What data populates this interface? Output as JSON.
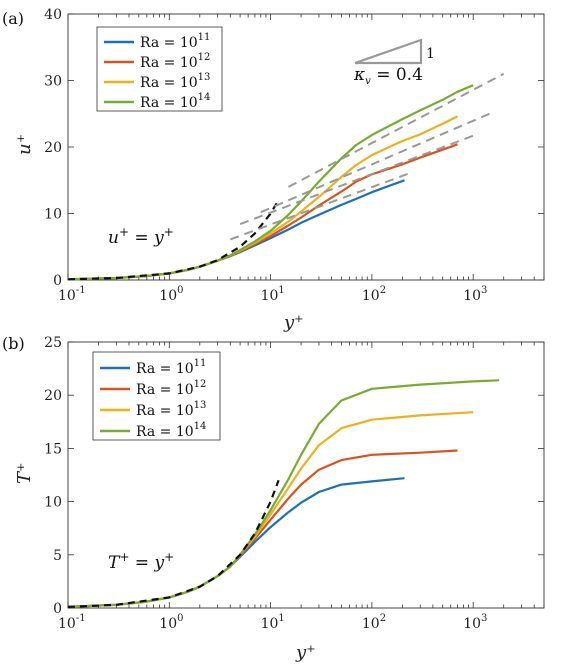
{
  "chart_data": [
    {
      "panel_label": "(a)",
      "type": "line",
      "xscale": "log",
      "xlim": [
        0.1,
        5000
      ],
      "ylim": [
        0,
        40
      ],
      "xlabel": "y⁺",
      "ylabel": "u⁺",
      "xticks": [
        0.1,
        1,
        10,
        100,
        1000
      ],
      "xtick_labels": [
        {
          "base": "10",
          "exp": "-1"
        },
        {
          "base": "10",
          "exp": "0"
        },
        {
          "base": "10",
          "exp": "1"
        },
        {
          "base": "10",
          "exp": "2"
        },
        {
          "base": "10",
          "exp": "3"
        }
      ],
      "yticks": [
        0,
        10,
        20,
        30,
        40
      ],
      "legend_position": "top-left",
      "series": [
        {
          "name": "Ra = 10¹¹",
          "legend_base": "Ra = 10",
          "legend_exp": "11",
          "color": "#1f6fb5",
          "points": [
            [
              0.1,
              0.1
            ],
            [
              0.3,
              0.3
            ],
            [
              0.6,
              0.6
            ],
            [
              1,
              1.0
            ],
            [
              1.5,
              1.5
            ],
            [
              2,
              2.0
            ],
            [
              3,
              2.9
            ],
            [
              4,
              3.6
            ],
            [
              5,
              4.2
            ],
            [
              7,
              5.2
            ],
            [
              10,
              6.3
            ],
            [
              15,
              7.6
            ],
            [
              20,
              8.6
            ],
            [
              30,
              9.8
            ],
            [
              50,
              11.3
            ],
            [
              70,
              12.2
            ],
            [
              100,
              13.2
            ],
            [
              150,
              14.2
            ],
            [
              210,
              15.0
            ]
          ]
        },
        {
          "name": "Ra = 10¹²",
          "legend_base": "Ra = 10",
          "legend_exp": "12",
          "color": "#d9531e",
          "points": [
            [
              0.1,
              0.1
            ],
            [
              0.3,
              0.3
            ],
            [
              0.6,
              0.6
            ],
            [
              1,
              1.0
            ],
            [
              1.5,
              1.5
            ],
            [
              2,
              2.0
            ],
            [
              3,
              2.9
            ],
            [
              4,
              3.6
            ],
            [
              5,
              4.3
            ],
            [
              7,
              5.4
            ],
            [
              10,
              6.6
            ],
            [
              15,
              8.2
            ],
            [
              20,
              9.4
            ],
            [
              30,
              11.2
            ],
            [
              50,
              13.3
            ],
            [
              70,
              14.8
            ],
            [
              100,
              15.9
            ],
            [
              200,
              17.4
            ],
            [
              300,
              18.4
            ],
            [
              500,
              19.6
            ],
            [
              700,
              20.4
            ]
          ]
        },
        {
          "name": "Ra = 10¹³",
          "legend_base": "Ra = 10",
          "legend_exp": "13",
          "color": "#edb120",
          "points": [
            [
              0.1,
              0.1
            ],
            [
              0.3,
              0.3
            ],
            [
              0.6,
              0.6
            ],
            [
              1,
              1.0
            ],
            [
              1.5,
              1.5
            ],
            [
              2,
              2.0
            ],
            [
              3,
              2.9
            ],
            [
              4,
              3.7
            ],
            [
              5,
              4.4
            ],
            [
              7,
              5.6
            ],
            [
              10,
              7.0
            ],
            [
              15,
              8.8
            ],
            [
              20,
              10.3
            ],
            [
              30,
              12.5
            ],
            [
              50,
              15.5
            ],
            [
              70,
              17.3
            ],
            [
              100,
              18.8
            ],
            [
              200,
              20.9
            ],
            [
              300,
              21.9
            ],
            [
              500,
              23.5
            ],
            [
              700,
              24.6
            ]
          ]
        },
        {
          "name": "Ra = 10¹⁴",
          "legend_base": "Ra = 10",
          "legend_exp": "14",
          "color": "#77ac30",
          "points": [
            [
              0.1,
              0.1
            ],
            [
              0.3,
              0.3
            ],
            [
              0.6,
              0.6
            ],
            [
              1,
              1.0
            ],
            [
              1.5,
              1.5
            ],
            [
              2,
              2.0
            ],
            [
              3,
              2.9
            ],
            [
              4,
              3.7
            ],
            [
              5,
              4.5
            ],
            [
              7,
              5.8
            ],
            [
              10,
              7.4
            ],
            [
              15,
              9.8
            ],
            [
              20,
              11.8
            ],
            [
              30,
              14.8
            ],
            [
              50,
              18.3
            ],
            [
              70,
              20.3
            ],
            [
              100,
              21.8
            ],
            [
              200,
              24.2
            ],
            [
              300,
              25.5
            ],
            [
              500,
              27.1
            ],
            [
              700,
              28.3
            ],
            [
              1000,
              29.3
            ]
          ]
        }
      ],
      "reference_lines": [
        {
          "label": "u⁺ = y⁺",
          "style": "black-dashed",
          "color": "#111111",
          "points": [
            [
              0.1,
              0.1
            ],
            [
              0.3,
              0.3
            ],
            [
              1,
              1
            ],
            [
              2,
              2
            ],
            [
              3,
              3
            ],
            [
              5,
              5
            ],
            [
              7,
              7
            ],
            [
              10,
              10
            ],
            [
              12,
              12
            ]
          ]
        },
        {
          "style": "gray-dashed",
          "color": "#999999",
          "points": [
            [
              4,
              6.1
            ],
            [
              250,
              16.2
            ]
          ]
        },
        {
          "style": "gray-dashed",
          "color": "#999999",
          "points": [
            [
              5,
              8.4
            ],
            [
              1000,
              21.7
            ]
          ]
        },
        {
          "style": "gray-dashed",
          "color": "#999999",
          "points": [
            [
              8,
              10.2
            ],
            [
              1500,
              25.1
            ]
          ]
        },
        {
          "style": "gray-dashed",
          "color": "#999999",
          "points": [
            [
              15,
              14.0
            ],
            [
              2000,
              31.0
            ]
          ]
        }
      ],
      "annotations": {
        "formula": {
          "lhs": "u",
          "sup": "+",
          "eq": " = ",
          "rhs": "y",
          "rhs_sup": "+"
        },
        "slope_one": "1",
        "kappa": {
          "sym": "κ",
          "sub": "v",
          "text": " = 0.4"
        }
      }
    },
    {
      "panel_label": "(b)",
      "type": "line",
      "xscale": "log",
      "xlim": [
        0.1,
        5000
      ],
      "ylim": [
        0,
        25
      ],
      "xlabel": "y⁺",
      "ylabel": "T⁺",
      "xticks": [
        0.1,
        1,
        10,
        100,
        1000
      ],
      "xtick_labels": [
        {
          "base": "10",
          "exp": "-1"
        },
        {
          "base": "10",
          "exp": "0"
        },
        {
          "base": "10",
          "exp": "1"
        },
        {
          "base": "10",
          "exp": "2"
        },
        {
          "base": "10",
          "exp": "3"
        }
      ],
      "yticks": [
        0,
        5,
        10,
        15,
        20,
        25
      ],
      "legend_position": "top-left",
      "series": [
        {
          "name": "Ra = 10¹¹",
          "legend_base": "Ra = 10",
          "legend_exp": "11",
          "color": "#1f6fb5",
          "points": [
            [
              0.1,
              0.1
            ],
            [
              0.3,
              0.3
            ],
            [
              0.6,
              0.6
            ],
            [
              1,
              1.0
            ],
            [
              1.5,
              1.5
            ],
            [
              2,
              2.0
            ],
            [
              3,
              3.0
            ],
            [
              4,
              3.9
            ],
            [
              5,
              4.8
            ],
            [
              7,
              6.2
            ],
            [
              10,
              7.6
            ],
            [
              15,
              9.0
            ],
            [
              20,
              9.9
            ],
            [
              30,
              10.9
            ],
            [
              50,
              11.6
            ],
            [
              100,
              11.9
            ],
            [
              210,
              12.2
            ]
          ]
        },
        {
          "name": "Ra = 10¹²",
          "legend_base": "Ra = 10",
          "legend_exp": "12",
          "color": "#d9531e",
          "points": [
            [
              0.1,
              0.1
            ],
            [
              0.3,
              0.3
            ],
            [
              0.6,
              0.6
            ],
            [
              1,
              1.0
            ],
            [
              1.5,
              1.5
            ],
            [
              2,
              2.0
            ],
            [
              3,
              3.0
            ],
            [
              4,
              3.9
            ],
            [
              5,
              4.9
            ],
            [
              7,
              6.5
            ],
            [
              10,
              8.3
            ],
            [
              15,
              10.3
            ],
            [
              20,
              11.6
            ],
            [
              30,
              13.0
            ],
            [
              50,
              13.9
            ],
            [
              100,
              14.4
            ],
            [
              300,
              14.6
            ],
            [
              700,
              14.8
            ]
          ]
        },
        {
          "name": "Ra = 10¹³",
          "legend_base": "Ra = 10",
          "legend_exp": "13",
          "color": "#edb120",
          "points": [
            [
              0.1,
              0.1
            ],
            [
              0.3,
              0.3
            ],
            [
              0.6,
              0.6
            ],
            [
              1,
              1.0
            ],
            [
              1.5,
              1.5
            ],
            [
              2,
              2.0
            ],
            [
              3,
              3.0
            ],
            [
              4,
              3.9
            ],
            [
              5,
              5.0
            ],
            [
              7,
              6.7
            ],
            [
              10,
              8.8
            ],
            [
              15,
              11.3
            ],
            [
              20,
              13.1
            ],
            [
              30,
              15.3
            ],
            [
              50,
              16.9
            ],
            [
              100,
              17.7
            ],
            [
              300,
              18.1
            ],
            [
              1000,
              18.4
            ]
          ]
        },
        {
          "name": "Ra = 10¹⁴",
          "legend_base": "Ra = 10",
          "legend_exp": "14",
          "color": "#77ac30",
          "points": [
            [
              0.1,
              0.1
            ],
            [
              0.3,
              0.3
            ],
            [
              0.6,
              0.6
            ],
            [
              1,
              1.0
            ],
            [
              1.5,
              1.5
            ],
            [
              2,
              2.0
            ],
            [
              3,
              3.0
            ],
            [
              4,
              3.9
            ],
            [
              5,
              5.0
            ],
            [
              7,
              6.9
            ],
            [
              10,
              9.2
            ],
            [
              15,
              12.1
            ],
            [
              20,
              14.4
            ],
            [
              30,
              17.3
            ],
            [
              50,
              19.5
            ],
            [
              100,
              20.6
            ],
            [
              300,
              21.0
            ],
            [
              1000,
              21.3
            ],
            [
              1800,
              21.4
            ]
          ]
        }
      ],
      "reference_lines": [
        {
          "label": "T⁺ = y⁺",
          "style": "black-dashed",
          "color": "#111111",
          "points": [
            [
              0.1,
              0.1
            ],
            [
              0.3,
              0.3
            ],
            [
              1,
              1
            ],
            [
              2,
              2
            ],
            [
              3,
              3
            ],
            [
              5,
              5
            ],
            [
              7,
              7
            ],
            [
              10,
              10
            ],
            [
              12,
              12
            ]
          ]
        }
      ],
      "annotations": {
        "formula": {
          "lhs": "T",
          "sup": "+",
          "eq": " = ",
          "rhs": "y",
          "rhs_sup": "+"
        }
      }
    }
  ]
}
